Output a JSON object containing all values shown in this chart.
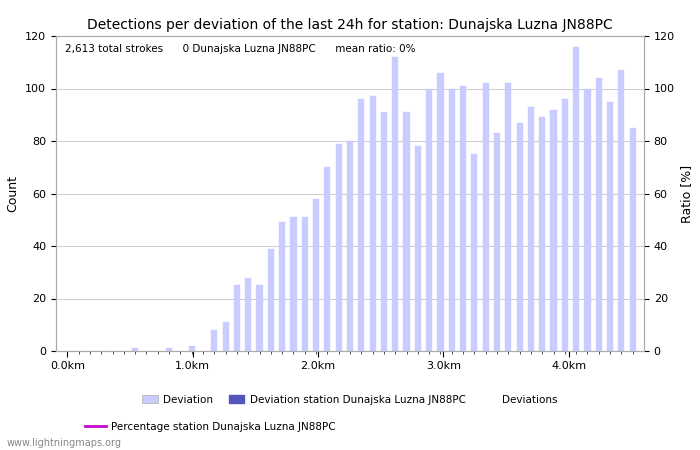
{
  "title": "Detections per deviation of the last 24h for station: Dunajska Luzna JN88PC",
  "annotation": "2,613 total strokes      0 Dunajska Luzna JN88PC      mean ratio: 0%",
  "xlabel_ticks": [
    "0.0km",
    "1.0km",
    "2.0km",
    "3.0km",
    "4.0km"
  ],
  "ylabel_left": "Count",
  "ylabel_right": "Ratio [%]",
  "ylim": [
    0,
    120
  ],
  "bar_color_light": "#c8ccff",
  "bar_color_dark": "#5555bb",
  "line_color": "#cc00cc",
  "background_color": "#ffffff",
  "grid_color": "#cccccc",
  "watermark": "www.lightningmaps.org",
  "legend_entries": [
    "Deviation",
    "Deviation station Dunajska Luzna JN88PC",
    "Deviations",
    "Percentage station Dunajska Luzna JN88PC"
  ],
  "bar_values": [
    0,
    0,
    0,
    0,
    0,
    0,
    1,
    0,
    0,
    1,
    0,
    2,
    0,
    8,
    11,
    25,
    28,
    25,
    39,
    49,
    51,
    51,
    58,
    70,
    79,
    80,
    96,
    97,
    91,
    112,
    91,
    78,
    100,
    106,
    100,
    101,
    75,
    102,
    83,
    102,
    87,
    93,
    89,
    92,
    96,
    116,
    100,
    104,
    95,
    107,
    85
  ],
  "num_bars": 51,
  "x_max_km": 4.6,
  "x_label_km": [
    0.0,
    1.0,
    2.0,
    3.0,
    4.0
  ],
  "figsize": [
    7.0,
    4.5
  ],
  "dpi": 100
}
